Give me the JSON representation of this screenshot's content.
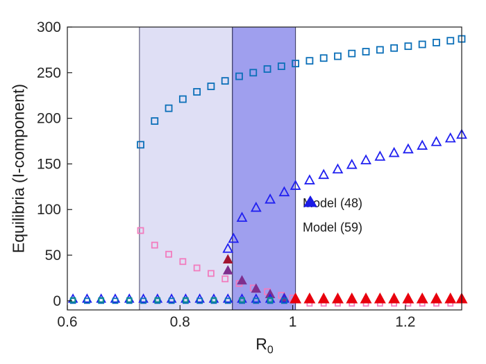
{
  "chart_data": {
    "type": "scatter",
    "title": "",
    "xlabel_base": "R",
    "xlabel_sub": "0",
    "ylabel": "Equilibria (I-component)",
    "xlim": [
      0.6,
      1.3
    ],
    "ylim": [
      -10,
      300
    ],
    "xticks": [
      0.6,
      0.8,
      1.0,
      1.2
    ],
    "xtick_labels": [
      "0.6",
      "0.8",
      "1",
      "1.2"
    ],
    "yticks": [
      0,
      50,
      100,
      150,
      200,
      250,
      300
    ],
    "ytick_labels": [
      "0",
      "50",
      "100",
      "150",
      "200",
      "250",
      "300"
    ],
    "grid": false,
    "axis_color": "#1a1a1a",
    "regions": [
      {
        "name": "bistable-region-light",
        "x0": 0.728,
        "x1": 0.893,
        "fill": "#dcdcf4",
        "opacity": 0.9,
        "stroke": "#44446a"
      },
      {
        "name": "bistable-region-dark",
        "x0": 0.893,
        "x1": 1.005,
        "fill": "#5050e0",
        "opacity": 0.55,
        "stroke": "#33335a"
      }
    ],
    "series": [
      {
        "name": "endemic-upper-squares",
        "marker": "square",
        "color": "#0b6fb8",
        "fill": "none",
        "size": 9,
        "x": [
          0.73,
          0.755,
          0.78,
          0.805,
          0.83,
          0.855,
          0.88,
          0.905,
          0.93,
          0.955,
          0.98,
          1.005,
          1.03,
          1.055,
          1.08,
          1.105,
          1.13,
          1.155,
          1.18,
          1.205,
          1.23,
          1.255,
          1.28,
          1.3
        ],
        "y": [
          171,
          197,
          211,
          221,
          229,
          235,
          241,
          246,
          250,
          254,
          257,
          260,
          263,
          266,
          268,
          271,
          273,
          275,
          277,
          279,
          281,
          283,
          285,
          287
        ]
      },
      {
        "name": "endemic-upper-triangles",
        "marker": "triangle",
        "color": "#2020f0",
        "fill": "none",
        "size": 11,
        "x": [
          0.885,
          0.895,
          0.91,
          0.935,
          0.96,
          0.985,
          1.005,
          1.03,
          1.055,
          1.08,
          1.105,
          1.13,
          1.155,
          1.18,
          1.205,
          1.23,
          1.255,
          1.28,
          1.3
        ],
        "y": [
          57,
          68,
          91,
          102,
          111,
          119,
          126,
          132,
          138,
          144,
          149,
          154,
          158,
          162,
          166,
          170,
          174,
          178,
          182
        ]
      },
      {
        "name": "unstable-pink-squares",
        "marker": "square",
        "color": "#f27cbe",
        "fill": "none",
        "size": 8,
        "x": [
          0.73,
          0.755,
          0.78,
          0.805,
          0.83,
          0.855,
          0.88,
          0.905,
          0.93,
          0.955,
          0.98,
          1.0
        ],
        "y": [
          77,
          61,
          51,
          43,
          36,
          30,
          24,
          19,
          14,
          10,
          6,
          3
        ]
      },
      {
        "name": "unstable-pink-squares-negative",
        "marker": "square",
        "color": "#f27cbe",
        "fill": "none",
        "size": 7,
        "x": [
          1.03,
          1.055,
          1.08,
          1.105,
          1.13,
          1.155,
          1.18,
          1.205,
          1.23,
          1.255,
          1.28
        ],
        "y": [
          -3,
          -3,
          -3,
          -3,
          -3,
          -3,
          -3,
          -3,
          -3,
          -3,
          -3
        ]
      },
      {
        "name": "unstable-purple-triangles",
        "marker": "triangle",
        "color": "#7E2F8E",
        "fill": "#7E2F8E",
        "size": 10,
        "x": [
          0.885,
          0.91,
          0.935,
          0.96,
          0.985
        ],
        "y": [
          33,
          22,
          13,
          7,
          3
        ]
      },
      {
        "name": "dark-red-triangle",
        "marker": "triangle",
        "color": "#a2142f",
        "fill": "#a2142f",
        "size": 10,
        "x": [
          0.885
        ],
        "y": [
          45
        ]
      },
      {
        "name": "dfe-blue-triangles",
        "marker": "triangle",
        "color": "#2020f0",
        "fill": "none",
        "size": 10,
        "x": [
          0.61,
          0.635,
          0.66,
          0.685,
          0.71,
          0.735,
          0.76,
          0.785,
          0.81,
          0.835,
          0.86,
          0.885,
          0.91,
          0.935,
          0.96,
          0.985
        ],
        "y": [
          2,
          2,
          2,
          2,
          2,
          2,
          2,
          2,
          2,
          2,
          2,
          2,
          2,
          2,
          2,
          2
        ]
      },
      {
        "name": "dfe-dark-squares",
        "marker": "square",
        "color": "#0b6fb8",
        "fill": "none",
        "size": 7,
        "x": [
          0.61,
          0.635,
          0.66,
          0.685,
          0.71,
          0.735,
          0.76,
          0.785,
          0.81,
          0.835,
          0.86,
          0.885,
          0.91,
          0.935,
          0.96,
          0.985
        ],
        "y": [
          0,
          0,
          0,
          0,
          0,
          0,
          0,
          0,
          0,
          0,
          0,
          0,
          0,
          0,
          0,
          0
        ]
      },
      {
        "name": "dfe-teal-squares",
        "marker": "square",
        "color": "#0f8f8f",
        "fill": "none",
        "size": 6,
        "x": [
          0.61,
          0.66,
          0.71,
          0.76,
          0.81,
          0.86,
          0.91,
          0.96
        ],
        "y": [
          1,
          1,
          1,
          1,
          1,
          1,
          1,
          1
        ]
      },
      {
        "name": "dfe-red-triangles",
        "marker": "triangle",
        "color": "#e8000d",
        "fill": "#e8000d",
        "size": 12,
        "x": [
          1.005,
          1.03,
          1.055,
          1.08,
          1.105,
          1.13,
          1.155,
          1.18,
          1.205,
          1.23,
          1.255,
          1.28,
          1.3
        ],
        "y": [
          2,
          2,
          2,
          2,
          2,
          2,
          2,
          2,
          2,
          2,
          2,
          2,
          2
        ]
      }
    ],
    "legend": {
      "position": "right-middle",
      "marker_color": "#1a1ae6",
      "items": [
        {
          "label": "Model (48)",
          "marker": "triangle"
        },
        {
          "label": "Model (59)",
          "marker": "triangle"
        }
      ]
    }
  }
}
